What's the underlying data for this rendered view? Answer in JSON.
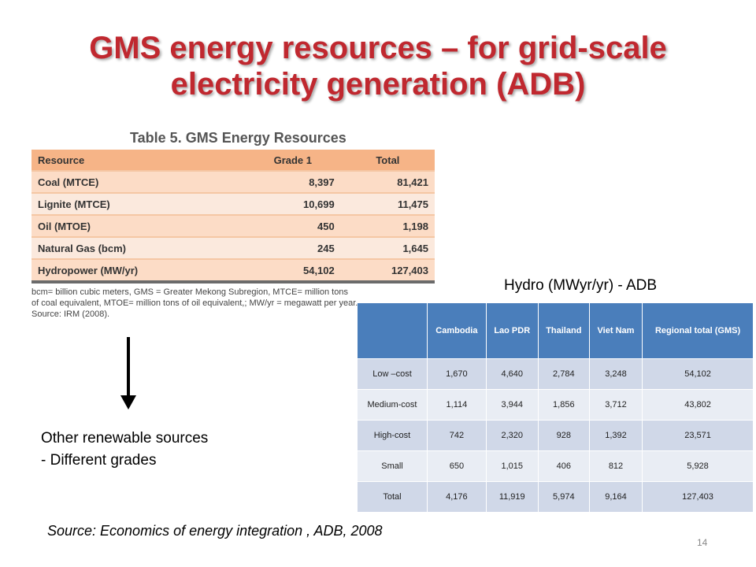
{
  "title": {
    "line1": "GMS energy resources – for grid-scale",
    "line2": "electricity generation (ADB)"
  },
  "table5": {
    "caption": "Table 5. GMS Energy Resources",
    "headers": [
      "Resource",
      "Grade 1",
      "Total"
    ],
    "rows": [
      {
        "resource": "Coal (MTCE)",
        "grade1": "8,397",
        "total": "81,421"
      },
      {
        "resource": "Lignite (MTCE)",
        "grade1": "10,699",
        "total": "11,475"
      },
      {
        "resource": "Oil (MTOE)",
        "grade1": "450",
        "total": "1,198"
      },
      {
        "resource": "Natural Gas (bcm)",
        "grade1": "245",
        "total": "1,645"
      },
      {
        "resource": "Hydropower (MW/yr)",
        "grade1": "54,102",
        "total": "127,403"
      }
    ],
    "note_line1": "bcm= billion cubic meters, GMS = Greater Mekong Subregion, MTCE= million tons",
    "note_line2": "of coal equivalent, MTOE= million tons of oil equivalent,; MW/yr = megawatt per year.",
    "note_line3": "Source: IRM (2008)."
  },
  "other_renewables": {
    "line1": "Other renewable sources",
    "line2": "- Different grades"
  },
  "hydro": {
    "title": "Hydro (MWyr/yr) - ADB",
    "headers": [
      "",
      "Cambodia",
      "Lao PDR",
      "Thailand",
      "Viet Nam",
      "Regional total (GMS)"
    ],
    "rows": [
      {
        "label": "Low –cost",
        "cells": [
          "1,670",
          "4,640",
          "2,784",
          "3,248",
          "54,102"
        ]
      },
      {
        "label": "Medium-cost",
        "cells": [
          "1,114",
          "3,944",
          "1,856",
          "3,712",
          "43,802"
        ]
      },
      {
        "label": "High-cost",
        "cells": [
          "742",
          "2,320",
          "928",
          "1,392",
          "23,571"
        ]
      },
      {
        "label": "Small",
        "cells": [
          "650",
          "1,015",
          "406",
          "812",
          "5,928"
        ]
      },
      {
        "label": "Total",
        "cells": [
          "4,176",
          "11,919",
          "5,974",
          "9,164",
          "127,403"
        ]
      }
    ]
  },
  "source": "Source: Economics of energy integration , ADB, 2008",
  "page_number": "14"
}
